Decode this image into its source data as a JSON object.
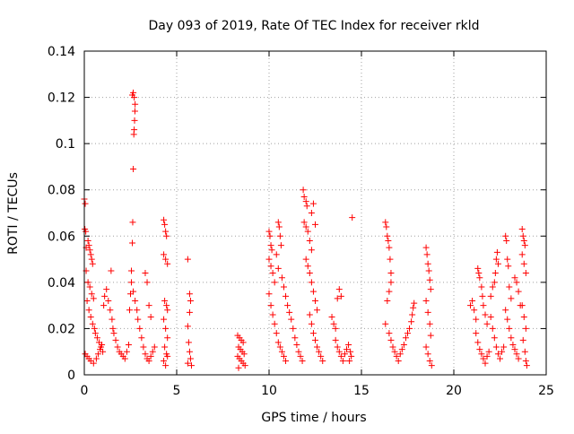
{
  "chart_data": {
    "type": "scatter",
    "title": "Day 093 of 2019, Rate Of TEC Index for receiver rkld",
    "xlabel": "GPS time / hours",
    "ylabel": "ROTI / TECUs",
    "xlim": [
      0,
      25
    ],
    "ylim": [
      0,
      0.14
    ],
    "xticks": [
      0,
      5,
      10,
      15,
      20,
      25
    ],
    "yticks": [
      0,
      0.02,
      0.04,
      0.06,
      0.08,
      0.1,
      0.12,
      0.14
    ],
    "xtick_labels": [
      "0",
      "5",
      "10",
      "15",
      "20",
      "25"
    ],
    "ytick_labels": [
      "0",
      "0.02",
      "0.04",
      "0.06",
      "0.08",
      "0.1",
      "0.12",
      "0.14"
    ],
    "grid": true,
    "marker": "+",
    "color": "#ff0000",
    "series": [
      {
        "name": "ROTI",
        "points": [
          [
            0.0,
            0.076
          ],
          [
            0.05,
            0.074
          ],
          [
            0.03,
            0.063
          ],
          [
            0.08,
            0.062
          ],
          [
            0.1,
            0.055
          ],
          [
            0.2,
            0.058
          ],
          [
            0.25,
            0.056
          ],
          [
            0.3,
            0.054
          ],
          [
            0.35,
            0.052
          ],
          [
            0.4,
            0.05
          ],
          [
            0.45,
            0.048
          ],
          [
            0.1,
            0.045
          ],
          [
            0.2,
            0.04
          ],
          [
            0.3,
            0.038
          ],
          [
            0.4,
            0.035
          ],
          [
            0.5,
            0.033
          ],
          [
            0.15,
            0.032
          ],
          [
            0.25,
            0.028
          ],
          [
            0.35,
            0.025
          ],
          [
            0.45,
            0.022
          ],
          [
            0.55,
            0.02
          ],
          [
            0.6,
            0.018
          ],
          [
            0.7,
            0.016
          ],
          [
            0.8,
            0.014
          ],
          [
            0.9,
            0.012
          ],
          [
            1.0,
            0.01
          ],
          [
            0.05,
            0.009
          ],
          [
            0.15,
            0.008
          ],
          [
            0.25,
            0.007
          ],
          [
            0.35,
            0.006
          ],
          [
            0.5,
            0.005
          ],
          [
            0.65,
            0.007
          ],
          [
            0.75,
            0.009
          ],
          [
            0.85,
            0.011
          ],
          [
            0.95,
            0.013
          ],
          [
            1.05,
            0.03
          ],
          [
            1.1,
            0.034
          ],
          [
            1.2,
            0.037
          ],
          [
            1.3,
            0.032
          ],
          [
            1.4,
            0.028
          ],
          [
            1.5,
            0.024
          ],
          [
            1.55,
            0.02
          ],
          [
            1.6,
            0.018
          ],
          [
            1.7,
            0.015
          ],
          [
            1.8,
            0.012
          ],
          [
            1.9,
            0.01
          ],
          [
            1.45,
            0.045
          ],
          [
            2.0,
            0.009
          ],
          [
            2.1,
            0.008
          ],
          [
            2.2,
            0.007
          ],
          [
            2.3,
            0.01
          ],
          [
            2.4,
            0.013
          ],
          [
            2.45,
            0.028
          ],
          [
            2.5,
            0.035
          ],
          [
            2.55,
            0.045
          ],
          [
            2.6,
            0.057
          ],
          [
            2.62,
            0.066
          ],
          [
            2.65,
            0.089
          ],
          [
            2.68,
            0.104
          ],
          [
            2.7,
            0.106
          ],
          [
            2.72,
            0.11
          ],
          [
            2.74,
            0.114
          ],
          [
            2.6,
            0.121
          ],
          [
            2.65,
            0.122
          ],
          [
            2.7,
            0.12
          ],
          [
            2.75,
            0.117
          ],
          [
            2.55,
            0.04
          ],
          [
            2.65,
            0.036
          ],
          [
            2.75,
            0.032
          ],
          [
            2.85,
            0.028
          ],
          [
            2.9,
            0.024
          ],
          [
            3.0,
            0.02
          ],
          [
            3.1,
            0.016
          ],
          [
            3.2,
            0.012
          ],
          [
            3.3,
            0.009
          ],
          [
            3.4,
            0.007
          ],
          [
            3.5,
            0.006
          ],
          [
            3.6,
            0.008
          ],
          [
            3.7,
            0.01
          ],
          [
            3.8,
            0.012
          ],
          [
            3.3,
            0.044
          ],
          [
            3.4,
            0.04
          ],
          [
            3.5,
            0.03
          ],
          [
            3.6,
            0.025
          ],
          [
            4.3,
            0.067
          ],
          [
            4.35,
            0.065
          ],
          [
            4.4,
            0.062
          ],
          [
            4.45,
            0.06
          ],
          [
            4.3,
            0.052
          ],
          [
            4.4,
            0.05
          ],
          [
            4.5,
            0.048
          ],
          [
            4.35,
            0.032
          ],
          [
            4.45,
            0.03
          ],
          [
            4.5,
            0.028
          ],
          [
            4.3,
            0.024
          ],
          [
            4.4,
            0.02
          ],
          [
            4.5,
            0.016
          ],
          [
            4.35,
            0.012
          ],
          [
            4.45,
            0.009
          ],
          [
            4.3,
            0.006
          ],
          [
            4.4,
            0.004
          ],
          [
            4.5,
            0.008
          ],
          [
            5.6,
            0.05
          ],
          [
            5.7,
            0.035
          ],
          [
            5.75,
            0.032
          ],
          [
            5.7,
            0.027
          ],
          [
            5.6,
            0.021
          ],
          [
            5.65,
            0.014
          ],
          [
            5.7,
            0.01
          ],
          [
            5.75,
            0.007
          ],
          [
            5.6,
            0.005
          ],
          [
            5.8,
            0.004
          ],
          [
            8.3,
            0.017
          ],
          [
            8.4,
            0.016
          ],
          [
            8.5,
            0.015
          ],
          [
            8.6,
            0.014
          ],
          [
            8.35,
            0.012
          ],
          [
            8.45,
            0.011
          ],
          [
            8.55,
            0.01
          ],
          [
            8.65,
            0.009
          ],
          [
            8.3,
            0.008
          ],
          [
            8.4,
            0.007
          ],
          [
            8.5,
            0.006
          ],
          [
            8.6,
            0.005
          ],
          [
            8.7,
            0.004
          ],
          [
            8.35,
            0.003
          ],
          [
            10.0,
            0.062
          ],
          [
            10.05,
            0.06
          ],
          [
            10.1,
            0.056
          ],
          [
            10.15,
            0.054
          ],
          [
            10.0,
            0.05
          ],
          [
            10.1,
            0.047
          ],
          [
            10.2,
            0.044
          ],
          [
            10.3,
            0.04
          ],
          [
            10.0,
            0.035
          ],
          [
            10.1,
            0.03
          ],
          [
            10.2,
            0.026
          ],
          [
            10.3,
            0.022
          ],
          [
            10.4,
            0.018
          ],
          [
            10.5,
            0.014
          ],
          [
            10.6,
            0.012
          ],
          [
            10.7,
            0.01
          ],
          [
            10.8,
            0.008
          ],
          [
            10.9,
            0.006
          ],
          [
            10.5,
            0.066
          ],
          [
            10.55,
            0.064
          ],
          [
            10.6,
            0.06
          ],
          [
            10.65,
            0.056
          ],
          [
            10.4,
            0.052
          ],
          [
            10.5,
            0.046
          ],
          [
            10.7,
            0.042
          ],
          [
            10.8,
            0.038
          ],
          [
            10.9,
            0.034
          ],
          [
            11.0,
            0.03
          ],
          [
            11.1,
            0.027
          ],
          [
            11.2,
            0.024
          ],
          [
            11.3,
            0.02
          ],
          [
            11.4,
            0.016
          ],
          [
            11.5,
            0.013
          ],
          [
            11.6,
            0.01
          ],
          [
            11.7,
            0.008
          ],
          [
            11.8,
            0.006
          ],
          [
            11.85,
            0.08
          ],
          [
            11.9,
            0.077
          ],
          [
            12.0,
            0.075
          ],
          [
            12.05,
            0.073
          ],
          [
            11.9,
            0.066
          ],
          [
            12.0,
            0.064
          ],
          [
            12.1,
            0.062
          ],
          [
            12.2,
            0.058
          ],
          [
            12.3,
            0.054
          ],
          [
            12.0,
            0.05
          ],
          [
            12.1,
            0.047
          ],
          [
            12.2,
            0.044
          ],
          [
            12.3,
            0.04
          ],
          [
            12.4,
            0.036
          ],
          [
            12.5,
            0.032
          ],
          [
            12.6,
            0.028
          ],
          [
            12.2,
            0.026
          ],
          [
            12.3,
            0.022
          ],
          [
            12.4,
            0.018
          ],
          [
            12.5,
            0.015
          ],
          [
            12.6,
            0.012
          ],
          [
            12.7,
            0.01
          ],
          [
            12.8,
            0.008
          ],
          [
            12.9,
            0.006
          ],
          [
            12.4,
            0.074
          ],
          [
            12.3,
            0.07
          ],
          [
            12.5,
            0.065
          ],
          [
            13.4,
            0.025
          ],
          [
            13.5,
            0.022
          ],
          [
            13.6,
            0.02
          ],
          [
            13.7,
            0.033
          ],
          [
            13.8,
            0.037
          ],
          [
            13.9,
            0.034
          ],
          [
            13.6,
            0.015
          ],
          [
            13.7,
            0.012
          ],
          [
            13.8,
            0.01
          ],
          [
            13.9,
            0.008
          ],
          [
            14.0,
            0.006
          ],
          [
            14.1,
            0.009
          ],
          [
            14.2,
            0.011
          ],
          [
            14.3,
            0.013
          ],
          [
            14.4,
            0.01
          ],
          [
            14.5,
            0.068
          ],
          [
            14.45,
            0.008
          ],
          [
            14.35,
            0.006
          ],
          [
            16.3,
            0.066
          ],
          [
            16.35,
            0.064
          ],
          [
            16.4,
            0.06
          ],
          [
            16.45,
            0.058
          ],
          [
            16.5,
            0.055
          ],
          [
            16.55,
            0.05
          ],
          [
            16.6,
            0.044
          ],
          [
            16.6,
            0.04
          ],
          [
            16.5,
            0.036
          ],
          [
            16.4,
            0.032
          ],
          [
            16.3,
            0.022
          ],
          [
            16.5,
            0.018
          ],
          [
            16.6,
            0.015
          ],
          [
            16.7,
            0.012
          ],
          [
            16.8,
            0.01
          ],
          [
            16.9,
            0.008
          ],
          [
            17.0,
            0.006
          ],
          [
            17.1,
            0.009
          ],
          [
            17.2,
            0.011
          ],
          [
            17.3,
            0.013
          ],
          [
            17.4,
            0.016
          ],
          [
            17.5,
            0.018
          ],
          [
            17.6,
            0.02
          ],
          [
            17.7,
            0.023
          ],
          [
            17.75,
            0.026
          ],
          [
            17.8,
            0.029
          ],
          [
            17.85,
            0.031
          ],
          [
            18.5,
            0.055
          ],
          [
            18.55,
            0.052
          ],
          [
            18.6,
            0.048
          ],
          [
            18.65,
            0.045
          ],
          [
            18.7,
            0.041
          ],
          [
            18.75,
            0.037
          ],
          [
            18.5,
            0.032
          ],
          [
            18.6,
            0.027
          ],
          [
            18.7,
            0.022
          ],
          [
            18.75,
            0.017
          ],
          [
            18.5,
            0.012
          ],
          [
            18.6,
            0.009
          ],
          [
            18.7,
            0.006
          ],
          [
            18.8,
            0.004
          ],
          [
            20.9,
            0.03
          ],
          [
            21.0,
            0.032
          ],
          [
            21.1,
            0.028
          ],
          [
            21.2,
            0.024
          ],
          [
            21.3,
            0.046
          ],
          [
            21.35,
            0.044
          ],
          [
            21.4,
            0.042
          ],
          [
            21.5,
            0.038
          ],
          [
            21.55,
            0.034
          ],
          [
            21.6,
            0.03
          ],
          [
            21.7,
            0.026
          ],
          [
            21.8,
            0.022
          ],
          [
            21.2,
            0.018
          ],
          [
            21.3,
            0.014
          ],
          [
            21.4,
            0.011
          ],
          [
            21.5,
            0.009
          ],
          [
            21.6,
            0.007
          ],
          [
            21.7,
            0.005
          ],
          [
            21.8,
            0.008
          ],
          [
            21.9,
            0.01
          ],
          [
            22.0,
            0.034
          ],
          [
            22.1,
            0.038
          ],
          [
            22.2,
            0.04
          ],
          [
            22.25,
            0.044
          ],
          [
            22.3,
            0.05
          ],
          [
            22.35,
            0.053
          ],
          [
            22.4,
            0.048
          ],
          [
            22.0,
            0.025
          ],
          [
            22.1,
            0.02
          ],
          [
            22.2,
            0.016
          ],
          [
            22.3,
            0.012
          ],
          [
            22.4,
            0.009
          ],
          [
            22.5,
            0.007
          ],
          [
            22.6,
            0.01
          ],
          [
            22.7,
            0.012
          ],
          [
            22.8,
            0.06
          ],
          [
            22.85,
            0.058
          ],
          [
            22.9,
            0.05
          ],
          [
            22.95,
            0.047
          ],
          [
            23.0,
            0.038
          ],
          [
            23.1,
            0.033
          ],
          [
            22.8,
            0.028
          ],
          [
            22.9,
            0.024
          ],
          [
            23.0,
            0.02
          ],
          [
            23.1,
            0.016
          ],
          [
            23.2,
            0.013
          ],
          [
            23.3,
            0.011
          ],
          [
            23.4,
            0.009
          ],
          [
            23.5,
            0.007
          ],
          [
            23.3,
            0.042
          ],
          [
            23.4,
            0.04
          ],
          [
            23.5,
            0.036
          ],
          [
            23.6,
            0.03
          ],
          [
            23.7,
            0.063
          ],
          [
            23.75,
            0.06
          ],
          [
            23.8,
            0.058
          ],
          [
            23.85,
            0.056
          ],
          [
            23.7,
            0.052
          ],
          [
            23.8,
            0.048
          ],
          [
            23.9,
            0.044
          ],
          [
            23.7,
            0.03
          ],
          [
            23.8,
            0.025
          ],
          [
            23.9,
            0.02
          ],
          [
            23.75,
            0.015
          ],
          [
            23.85,
            0.01
          ],
          [
            23.9,
            0.006
          ],
          [
            23.95,
            0.004
          ]
        ]
      }
    ]
  }
}
